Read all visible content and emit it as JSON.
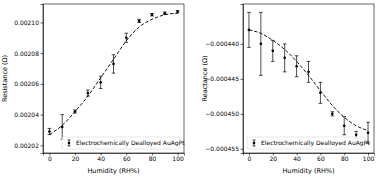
{
  "chart_data": [
    {
      "type": "scatter",
      "xlabel": "Humidity (RH%)",
      "ylabel": "Resistance (Ω)",
      "x": [
        0,
        10,
        20,
        30,
        40,
        50,
        60,
        70,
        80,
        90,
        100
      ],
      "xlim": [
        -5,
        105
      ],
      "xticks": [
        0,
        20,
        40,
        60,
        80,
        100
      ],
      "ylim": [
        0.002015,
        0.002112
      ],
      "yticks": [
        0.00202,
        0.00204,
        0.00206,
        0.00208,
        {
          "value": 0.0021,
          "label": "0.00210"
        }
      ],
      "grid": false,
      "legend": "lower right",
      "series": [
        {
          "name": "Electrochemically Dealloyed AuAgPt",
          "type": "scatter",
          "color": "#000000",
          "marker": "circle",
          "values": [
            0.002029,
            0.002032,
            0.002042,
            0.002054,
            0.002061,
            0.002073,
            0.00209,
            0.002101,
            0.002105,
            0.002106,
            0.002107
          ],
          "errors": [
            2e-06,
            8e-06,
            1e-06,
            2e-06,
            4e-06,
            6e-06,
            3e-06,
            1e-06,
            8e-07,
            8e-07,
            8e-07
          ]
        },
        {
          "type": "line",
          "color": "#000000",
          "line_style": "dashed",
          "values": [
            0.002027,
            0.002033,
            0.002042,
            0.002052,
            0.002064,
            0.002076,
            0.002088,
            0.002097,
            0.002102,
            0.002105,
            0.002106
          ]
        }
      ]
    },
    {
      "type": "scatter",
      "xlabel": "Humidity (RH%)",
      "ylabel": "Reactance (Ω)",
      "x": [
        0,
        10,
        20,
        30,
        40,
        50,
        60,
        70,
        80,
        90,
        100
      ],
      "xlim": [
        -5,
        105
      ],
      "xticks": [
        0,
        20,
        40,
        60,
        80,
        100
      ],
      "ylim": [
        -0.0004556,
        -0.0004343
      ],
      "yticks": [
        {
          "value": -0.000455,
          "label": "−0.000455"
        },
        {
          "value": -0.00045,
          "label": "−0.000450"
        },
        {
          "value": -0.000445,
          "label": "−0.000445"
        },
        {
          "value": -0.00044,
          "label": "−0.000440"
        }
      ],
      "grid": false,
      "legend": "lower left",
      "series": [
        {
          "name": "Electrochemically Dealloyed AuAgPt",
          "type": "scatter",
          "color": "#000000",
          "marker": "circle",
          "values": [
            -0.000438,
            -0.00044,
            -0.000441,
            -0.000442,
            -0.0004432,
            -0.000444,
            -0.000447,
            -0.00045,
            -0.0004517,
            -0.000453,
            -0.0004527
          ],
          "errors": [
            2.5e-06,
            4.5e-06,
            1.5e-06,
            2e-06,
            1.5e-06,
            1.5e-06,
            1.5e-06,
            3e-07,
            1.3e-06,
            5e-07,
            1.5e-06
          ]
        },
        {
          "type": "line",
          "color": "#000000",
          "line_style": "dashed",
          "values": [
            -0.000438,
            -0.0004385,
            -0.0004395,
            -0.0004408,
            -0.0004425,
            -0.0004445,
            -0.0004467,
            -0.0004488,
            -0.0004505,
            -0.0004517,
            -0.0004524
          ]
        }
      ]
    }
  ]
}
